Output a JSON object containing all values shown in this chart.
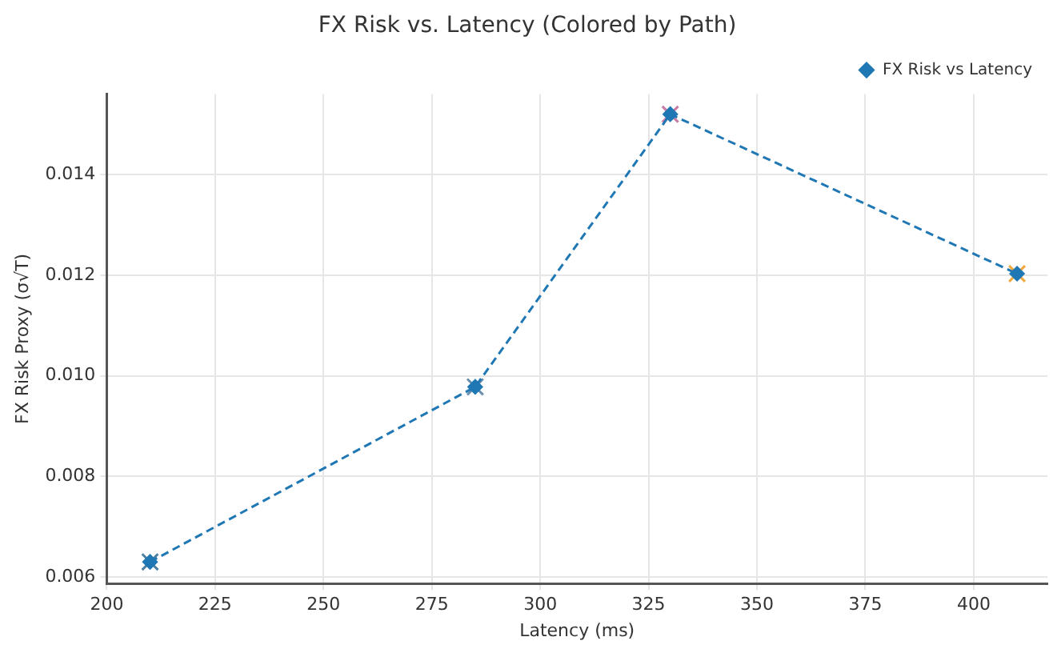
{
  "chart_data": {
    "type": "line",
    "title": "FX Risk vs. Latency (Colored by Path)",
    "xlabel": "Latency (ms)",
    "ylabel": "FX Risk Proxy (σ√T)",
    "x": [
      210,
      285,
      330,
      410
    ],
    "series": [
      {
        "name": "FX Risk vs Latency",
        "color": "#1f77b4",
        "marker": "diamond",
        "line_style": "dashed",
        "values": [
          0.0063,
          0.00978,
          0.0152,
          0.01203
        ]
      },
      {
        "type": "scatter",
        "marker": "cross",
        "colors": [
          "#4c7fa3",
          "#6b8fae",
          "#c87ba6",
          "#f2a93b"
        ],
        "values": [
          0.0063,
          0.00978,
          0.0152,
          0.01203
        ]
      }
    ],
    "xlim": [
      200,
      417
    ],
    "xticks": [
      200,
      225,
      250,
      275,
      300,
      325,
      350,
      375,
      400
    ],
    "ylim": [
      0.00587,
      0.0156
    ],
    "yticks": [
      0.006,
      0.008,
      {
        "value": 0.01,
        "label": "0.010"
      },
      0.012,
      0.014
    ],
    "grid": true,
    "legend": "top right"
  }
}
